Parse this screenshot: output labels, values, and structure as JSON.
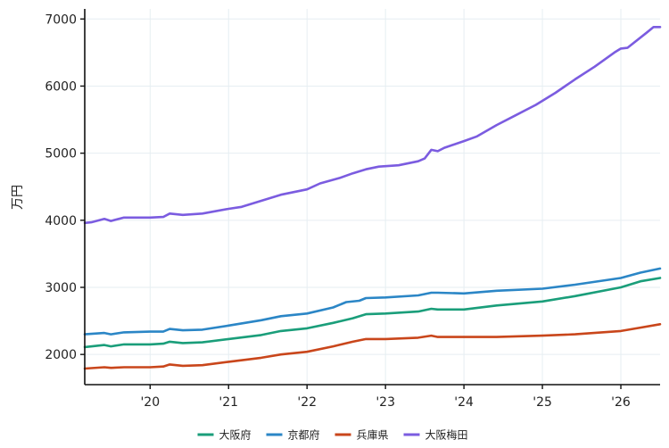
{
  "chart_data": {
    "type": "line",
    "title": "",
    "xlabel": "",
    "ylabel": "万円",
    "xlim": [
      "2019-03",
      "2026-07"
    ],
    "ylim": [
      1550,
      7150
    ],
    "x_ticks": [
      {
        "date": "2020-01",
        "label": "'20"
      },
      {
        "date": "2021-01",
        "label": "'21"
      },
      {
        "date": "2022-01",
        "label": "'22"
      },
      {
        "date": "2023-01",
        "label": "'23"
      },
      {
        "date": "2024-01",
        "label": "'24"
      },
      {
        "date": "2025-01",
        "label": "'25"
      },
      {
        "date": "2026-01",
        "label": "'26"
      }
    ],
    "y_ticks": [
      2000,
      3000,
      4000,
      5000,
      6000,
      7000
    ],
    "grid": true,
    "legend_position": "bottom-center",
    "series": [
      {
        "name": "大阪府",
        "color": "#1a9e7a",
        "points": [
          [
            "2019-03",
            2110
          ],
          [
            "2019-06",
            2140
          ],
          [
            "2019-07",
            2120
          ],
          [
            "2019-09",
            2150
          ],
          [
            "2020-01",
            2150
          ],
          [
            "2020-03",
            2160
          ],
          [
            "2020-04",
            2190
          ],
          [
            "2020-06",
            2170
          ],
          [
            "2020-09",
            2180
          ],
          [
            "2021-01",
            2230
          ],
          [
            "2021-06",
            2290
          ],
          [
            "2021-09",
            2350
          ],
          [
            "2022-01",
            2390
          ],
          [
            "2022-05",
            2470
          ],
          [
            "2022-08",
            2540
          ],
          [
            "2022-10",
            2600
          ],
          [
            "2023-01",
            2610
          ],
          [
            "2023-06",
            2640
          ],
          [
            "2023-08",
            2680
          ],
          [
            "2023-09",
            2670
          ],
          [
            "2024-01",
            2670
          ],
          [
            "2024-06",
            2730
          ],
          [
            "2025-01",
            2790
          ],
          [
            "2025-06",
            2870
          ],
          [
            "2026-01",
            3000
          ],
          [
            "2026-04",
            3090
          ],
          [
            "2026-07",
            3140
          ]
        ]
      },
      {
        "name": "京都府",
        "color": "#2b86c6",
        "points": [
          [
            "2019-03",
            2300
          ],
          [
            "2019-06",
            2320
          ],
          [
            "2019-07",
            2300
          ],
          [
            "2019-09",
            2330
          ],
          [
            "2020-01",
            2340
          ],
          [
            "2020-03",
            2340
          ],
          [
            "2020-04",
            2380
          ],
          [
            "2020-06",
            2360
          ],
          [
            "2020-09",
            2370
          ],
          [
            "2021-01",
            2430
          ],
          [
            "2021-06",
            2510
          ],
          [
            "2021-09",
            2570
          ],
          [
            "2022-01",
            2610
          ],
          [
            "2022-05",
            2700
          ],
          [
            "2022-07",
            2780
          ],
          [
            "2022-09",
            2800
          ],
          [
            "2022-10",
            2840
          ],
          [
            "2023-01",
            2850
          ],
          [
            "2023-06",
            2880
          ],
          [
            "2023-08",
            2920
          ],
          [
            "2023-09",
            2920
          ],
          [
            "2024-01",
            2910
          ],
          [
            "2024-06",
            2950
          ],
          [
            "2025-01",
            2980
          ],
          [
            "2025-06",
            3040
          ],
          [
            "2026-01",
            3140
          ],
          [
            "2026-04",
            3220
          ],
          [
            "2026-07",
            3280
          ]
        ]
      },
      {
        "name": "兵庫県",
        "color": "#c9461b",
        "points": [
          [
            "2019-03",
            1790
          ],
          [
            "2019-06",
            1810
          ],
          [
            "2019-07",
            1800
          ],
          [
            "2019-09",
            1810
          ],
          [
            "2020-01",
            1810
          ],
          [
            "2020-03",
            1820
          ],
          [
            "2020-04",
            1850
          ],
          [
            "2020-06",
            1830
          ],
          [
            "2020-09",
            1840
          ],
          [
            "2021-01",
            1890
          ],
          [
            "2021-06",
            1950
          ],
          [
            "2021-09",
            2000
          ],
          [
            "2022-01",
            2040
          ],
          [
            "2022-05",
            2120
          ],
          [
            "2022-08",
            2190
          ],
          [
            "2022-10",
            2230
          ],
          [
            "2023-01",
            2230
          ],
          [
            "2023-06",
            2250
          ],
          [
            "2023-08",
            2280
          ],
          [
            "2023-09",
            2260
          ],
          [
            "2024-01",
            2260
          ],
          [
            "2024-06",
            2260
          ],
          [
            "2025-01",
            2280
          ],
          [
            "2025-06",
            2300
          ],
          [
            "2026-01",
            2350
          ],
          [
            "2026-04",
            2400
          ],
          [
            "2026-07",
            2450
          ]
        ]
      },
      {
        "name": "大阪梅田",
        "color": "#7b5ce0",
        "points": [
          [
            "2019-03",
            3960
          ],
          [
            "2019-04",
            3970
          ],
          [
            "2019-06",
            4020
          ],
          [
            "2019-07",
            3990
          ],
          [
            "2019-09",
            4040
          ],
          [
            "2020-01",
            4040
          ],
          [
            "2020-03",
            4050
          ],
          [
            "2020-04",
            4100
          ],
          [
            "2020-06",
            4080
          ],
          [
            "2020-09",
            4100
          ],
          [
            "2021-01",
            4170
          ],
          [
            "2021-03",
            4200
          ],
          [
            "2021-06",
            4290
          ],
          [
            "2021-09",
            4380
          ],
          [
            "2022-01",
            4460
          ],
          [
            "2022-03",
            4550
          ],
          [
            "2022-06",
            4630
          ],
          [
            "2022-08",
            4700
          ],
          [
            "2022-10",
            4760
          ],
          [
            "2022-12",
            4800
          ],
          [
            "2023-03",
            4820
          ],
          [
            "2023-06",
            4880
          ],
          [
            "2023-07",
            4920
          ],
          [
            "2023-08",
            5050
          ],
          [
            "2023-09",
            5030
          ],
          [
            "2023-10",
            5080
          ],
          [
            "2024-01",
            5180
          ],
          [
            "2024-03",
            5250
          ],
          [
            "2024-06",
            5420
          ],
          [
            "2024-09",
            5570
          ],
          [
            "2024-12",
            5720
          ],
          [
            "2025-03",
            5900
          ],
          [
            "2025-06",
            6100
          ],
          [
            "2025-09",
            6290
          ],
          [
            "2025-12",
            6500
          ],
          [
            "2026-01",
            6560
          ],
          [
            "2026-02",
            6570
          ],
          [
            "2026-05",
            6800
          ],
          [
            "2026-06",
            6880
          ],
          [
            "2026-07",
            6880
          ]
        ]
      }
    ]
  }
}
